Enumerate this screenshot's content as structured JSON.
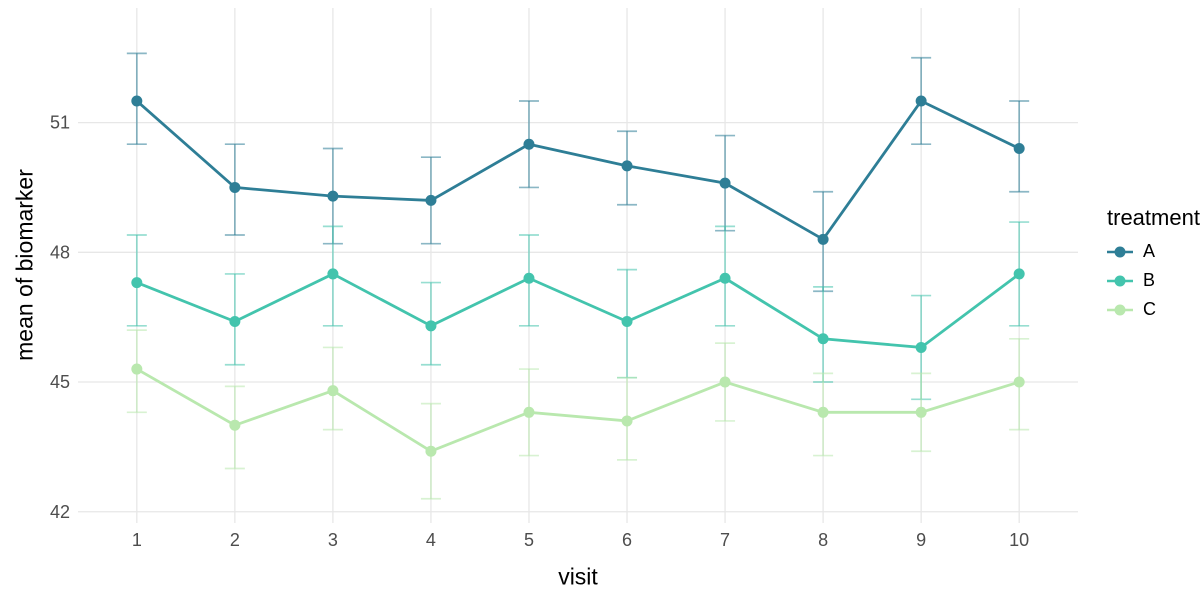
{
  "chart_data": {
    "type": "line",
    "title": "",
    "xlabel": "visit",
    "ylabel": "mean of biomarker",
    "legend_title": "treatment",
    "legend_position": "right",
    "grid": "major-only",
    "background_color": "#ffffff",
    "gridline_color": "#e7e7e7",
    "tick_label_color": "#4d4d4d",
    "axis_title_color": "#000000",
    "error_bar_opacity": 0.55,
    "x": [
      1,
      2,
      3,
      4,
      5,
      6,
      7,
      8,
      9,
      10
    ],
    "x_ticks": [
      1,
      2,
      3,
      4,
      5,
      6,
      7,
      8,
      9,
      10
    ],
    "y_ticks": [
      42,
      45,
      48,
      51
    ],
    "xlim": [
      0.4,
      10.6
    ],
    "ylim": [
      41.74,
      53.65
    ],
    "series": [
      {
        "name": "A",
        "color": "#2e7e96",
        "means": [
          51.5,
          49.5,
          49.3,
          49.2,
          50.5,
          50.0,
          49.6,
          48.3,
          51.5,
          50.4
        ],
        "upper": [
          52.6,
          50.5,
          50.4,
          50.2,
          51.5,
          50.8,
          50.7,
          49.4,
          52.5,
          51.5
        ],
        "lower": [
          50.5,
          48.4,
          48.2,
          48.2,
          49.5,
          49.1,
          48.5,
          47.1,
          50.5,
          49.4
        ]
      },
      {
        "name": "B",
        "color": "#43c4ad",
        "means": [
          47.3,
          46.4,
          47.5,
          46.3,
          47.4,
          46.4,
          47.4,
          46.0,
          45.8,
          47.5
        ],
        "upper": [
          48.4,
          47.5,
          48.6,
          47.3,
          48.4,
          47.6,
          48.6,
          47.2,
          47.0,
          48.7
        ],
        "lower": [
          46.3,
          45.4,
          46.3,
          45.4,
          46.3,
          45.1,
          46.3,
          45.0,
          44.6,
          46.3
        ]
      },
      {
        "name": "C",
        "color": "#b9e8ae",
        "means": [
          45.3,
          44.0,
          44.8,
          43.4,
          44.3,
          44.1,
          45.0,
          44.3,
          44.3,
          45.0
        ],
        "upper": [
          46.2,
          44.9,
          45.8,
          44.5,
          45.3,
          45.1,
          45.9,
          45.2,
          45.2,
          46.0
        ],
        "lower": [
          44.3,
          43.0,
          43.9,
          42.3,
          43.3,
          43.2,
          44.1,
          43.3,
          43.4,
          43.9
        ]
      }
    ]
  }
}
